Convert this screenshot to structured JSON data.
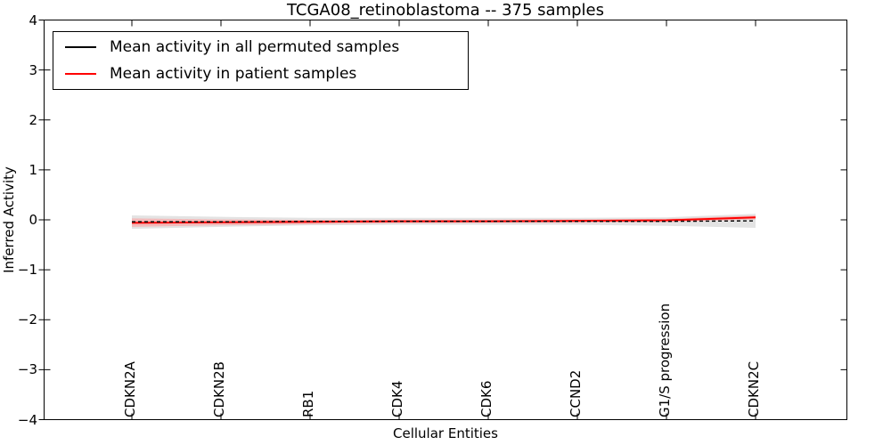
{
  "accent_colors": {
    "permuted_line": "#000000",
    "patient_line": "#ff0000",
    "permuted_band": "#e3e3e3",
    "patient_band": "#ff9999",
    "frame": "#000000"
  },
  "legend": {
    "items": [
      {
        "label": "Mean activity in all permuted samples",
        "color": "#000000"
      },
      {
        "label": "Mean activity in patient samples",
        "color": "#ff0000"
      }
    ]
  },
  "chart_data": {
    "type": "line",
    "title": "TCGA08_retinoblastoma -- 375 samples",
    "xlabel": "Cellular Entities",
    "ylabel": "Inferred Activity",
    "ylim": [
      -4,
      4
    ],
    "yticks": [
      4,
      3,
      2,
      1,
      0,
      -1,
      -2,
      -3,
      -4
    ],
    "y_tick_labels": [
      "4",
      "3",
      "2",
      "1",
      "0",
      "−1",
      "−2",
      "−3",
      "−4"
    ],
    "categories": [
      "CDKN2A",
      "CDKN2B",
      "RB1",
      "CDK4",
      "CDK6",
      "CCND2",
      "G1/S progression",
      "CDKN2C"
    ],
    "series": [
      {
        "name": "Mean activity in all permuted samples",
        "color": "#000000",
        "linestyle": "dashed",
        "values": [
          -0.04,
          -0.04,
          -0.03,
          -0.03,
          -0.03,
          -0.03,
          -0.03,
          -0.02
        ],
        "band_upper": [
          0.09,
          0.06,
          0.04,
          0.04,
          0.04,
          0.04,
          0.05,
          0.12
        ],
        "band_lower": [
          -0.18,
          -0.14,
          -0.11,
          -0.1,
          -0.1,
          -0.1,
          -0.12,
          -0.16
        ],
        "band_color": "#e3e3e3"
      },
      {
        "name": "Mean activity in patient samples",
        "color": "#ff0000",
        "linestyle": "solid",
        "values": [
          -0.06,
          -0.05,
          -0.04,
          -0.03,
          -0.03,
          -0.02,
          -0.01,
          0.05
        ],
        "band_upper": [
          0.03,
          0.01,
          0.0,
          0.0,
          0.0,
          0.01,
          0.02,
          0.09
        ],
        "band_lower": [
          -0.14,
          -0.11,
          -0.09,
          -0.07,
          -0.06,
          -0.06,
          -0.05,
          0.01
        ],
        "band_color": "#ff9999"
      }
    ],
    "legend_position": "upper left",
    "grid": false
  }
}
